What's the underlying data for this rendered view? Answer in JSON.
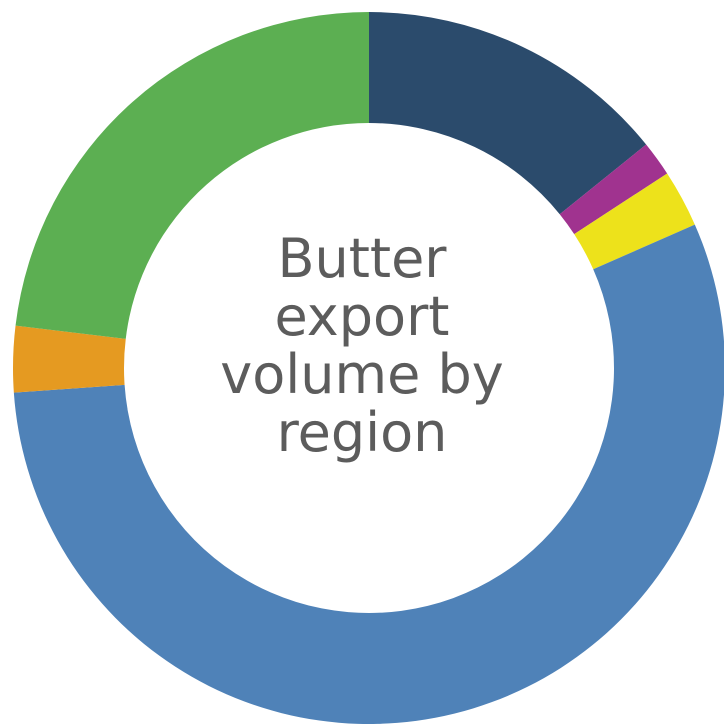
{
  "chart_data": {
    "type": "pie",
    "donut": true,
    "title": "Butter export volume by region",
    "start_angle_deg": 0,
    "direction": "clockwise",
    "slices": [
      {
        "value": 14.2,
        "color": "#2b4b6c"
      },
      {
        "value": 1.6,
        "color": "#a0338f"
      },
      {
        "value": 2.6,
        "color": "#ede21b"
      },
      {
        "value": 55.5,
        "color": "#4f82b8"
      },
      {
        "value": 3.0,
        "color": "#e59a21"
      },
      {
        "value": 23.1,
        "color": "#5caf52"
      }
    ]
  }
}
